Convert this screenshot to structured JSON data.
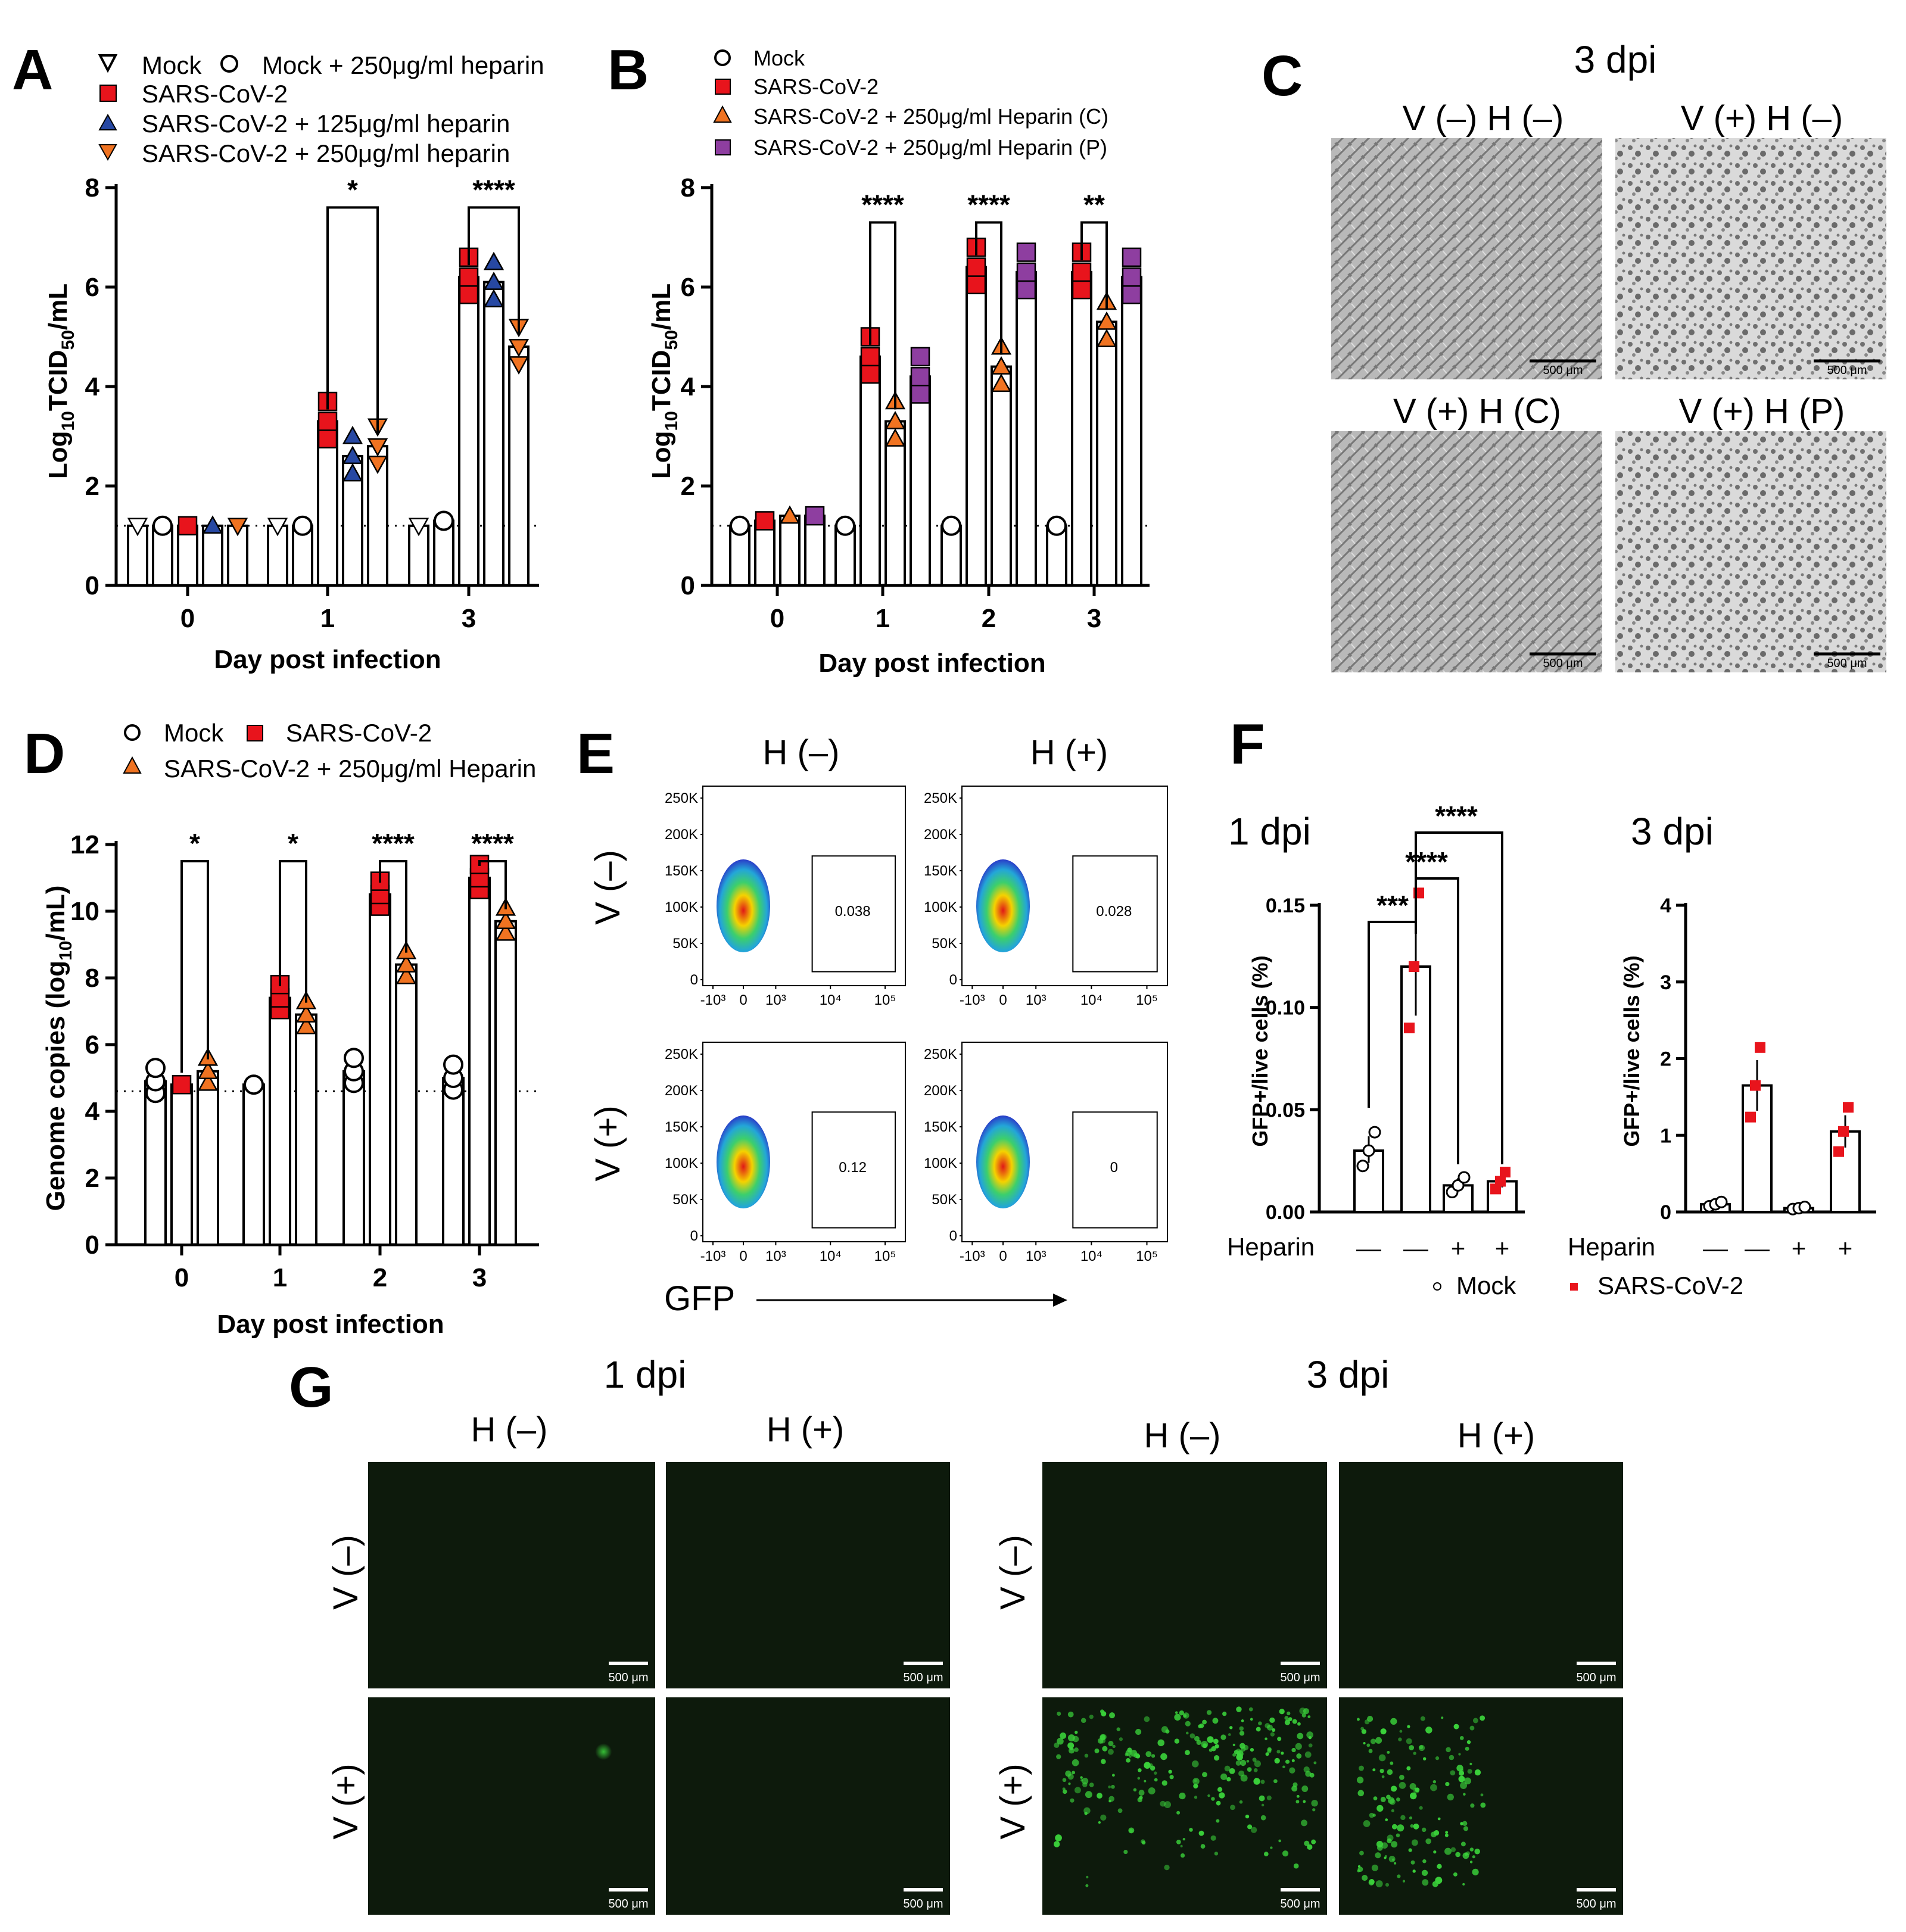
{
  "panels": {
    "A": "A",
    "B": "B",
    "C": "C",
    "D": "D",
    "E": "E",
    "F": "F",
    "G": "G"
  },
  "colors": {
    "mock": "#ffffff",
    "sars": "#e8141c",
    "hep125": "#2748a3",
    "hep250": "#f07321",
    "hepP": "#8e3ea0",
    "micro_bg": "#e6e6e6",
    "fluor_bg": "#0d1a0c",
    "gfp": "#3ad13a"
  },
  "legendA": [
    "Mock",
    "Mock + 250μg/ml heparin",
    "SARS-CoV-2",
    "SARS-CoV-2 + 125μg/ml heparin",
    "SARS-CoV-2 + 250μg/ml heparin"
  ],
  "legendB": [
    "Mock",
    "SARS-CoV-2",
    "SARS-CoV-2 + 250μg/ml Heparin (C)",
    "SARS-CoV-2 + 250μg/ml Heparin (P)"
  ],
  "legendD": [
    "Mock",
    "SARS-CoV-2",
    "SARS-CoV-2 + 250μg/ml Heparin"
  ],
  "panelC": {
    "title": "3 dpi",
    "labels": [
      "V (–) H (–)",
      "V (+) H (–)",
      "V (+) H (C)",
      "V (+) H (P)"
    ],
    "scale": "500 μm"
  },
  "panelE": {
    "cols": [
      "H (–)",
      "H (+)"
    ],
    "rows": [
      "V (–)",
      "V (+)"
    ],
    "gates": [
      "0.038",
      "0.028",
      "0.12",
      "0"
    ],
    "xaxis": "GFP",
    "yticks": [
      "250K",
      "200K",
      "150K",
      "100K",
      "50K",
      "0"
    ],
    "xticks": [
      "-10³",
      "0",
      "10³",
      "10⁴",
      "10⁵"
    ]
  },
  "panelF": {
    "t1": "1 dpi",
    "t2": "3 dpi",
    "ylabel": "GFP+/live cells (%)",
    "heparin_label": "Heparin",
    "heparin": [
      "—",
      "—",
      "+",
      "+"
    ],
    "legend": [
      "Mock",
      "SARS-CoV-2"
    ]
  },
  "panelG": {
    "t1": "1 dpi",
    "t2": "3 dpi",
    "cols": [
      "H (–)",
      "H (+)"
    ],
    "rows": [
      "V (–)",
      "V (+)"
    ],
    "scale": "500 μm"
  },
  "chart_data": [
    {
      "panel": "A",
      "type": "bar",
      "xlabel": "Day post infection",
      "ylabel": "Log10TCID50/mL",
      "ylim": [
        0,
        8
      ],
      "yticks": [
        0,
        2,
        4,
        6,
        8
      ],
      "categories": [
        "0",
        "1",
        "3"
      ],
      "limit_of_detection": 1.2,
      "series": [
        {
          "name": "Mock",
          "values": [
            1.2,
            1.2,
            1.2
          ]
        },
        {
          "name": "Mock + 250μg/ml heparin",
          "values": [
            1.2,
            1.2,
            1.3
          ]
        },
        {
          "name": "SARS-CoV-2",
          "values": [
            1.2,
            3.3,
            6.2
          ]
        },
        {
          "name": "SARS-CoV-2 + 125μg/ml heparin",
          "values": [
            1.2,
            2.6,
            6.1
          ]
        },
        {
          "name": "SARS-CoV-2 + 250μg/ml heparin",
          "values": [
            1.2,
            2.8,
            4.8
          ]
        }
      ],
      "significance": [
        {
          "day": "1",
          "label": "*"
        },
        {
          "day": "3",
          "label": "****"
        }
      ]
    },
    {
      "panel": "B",
      "type": "bar",
      "xlabel": "Day post infection",
      "ylabel": "Log10TCID50/mL",
      "ylim": [
        0,
        8
      ],
      "yticks": [
        0,
        2,
        4,
        6,
        8
      ],
      "categories": [
        "0",
        "1",
        "2",
        "3"
      ],
      "limit_of_detection": 1.2,
      "series": [
        {
          "name": "Mock",
          "values": [
            1.2,
            1.2,
            1.2,
            1.2
          ]
        },
        {
          "name": "SARS-CoV-2",
          "values": [
            1.3,
            4.6,
            6.4,
            6.3
          ]
        },
        {
          "name": "SARS-CoV-2 + 250μg/ml Heparin (C)",
          "values": [
            1.4,
            3.3,
            4.4,
            5.3
          ]
        },
        {
          "name": "SARS-CoV-2 + 250μg/ml Heparin (P)",
          "values": [
            1.4,
            4.2,
            6.3,
            6.2
          ]
        }
      ],
      "significance": [
        {
          "day": "1",
          "label": "****"
        },
        {
          "day": "2",
          "label": "****"
        },
        {
          "day": "3",
          "label": "**"
        }
      ]
    },
    {
      "panel": "D",
      "type": "bar",
      "xlabel": "Day post infection",
      "ylabel": "Genome copies (log10/mL)",
      "ylim": [
        0,
        12
      ],
      "yticks": [
        0,
        2,
        4,
        6,
        8,
        10,
        12
      ],
      "categories": [
        "0",
        "1",
        "2",
        "3"
      ],
      "limit_of_detection": 4.6,
      "series": [
        {
          "name": "Mock",
          "values": [
            4.9,
            4.8,
            5.2,
            5.0
          ]
        },
        {
          "name": "SARS-CoV-2",
          "values": [
            4.8,
            7.4,
            10.5,
            11.0
          ]
        },
        {
          "name": "SARS-CoV-2 + 250μg/ml Heparin",
          "values": [
            5.2,
            6.9,
            8.4,
            9.7
          ]
        }
      ],
      "significance": [
        {
          "day": "0",
          "label": "*"
        },
        {
          "day": "1",
          "label": "*"
        },
        {
          "day": "2",
          "label": "****"
        },
        {
          "day": "3",
          "label": "****"
        }
      ]
    },
    {
      "panel": "F-1dpi",
      "type": "bar",
      "ylabel": "GFP+/live cells (%)",
      "ylim": [
        0,
        0.15
      ],
      "yticks": [
        "0.00",
        "0.05",
        "0.10",
        "0.15"
      ],
      "categories": [
        "Mock —",
        "SARS-CoV-2 —",
        "Mock +",
        "SARS-CoV-2 +"
      ],
      "values": [
        0.03,
        0.12,
        0.013,
        0.015
      ],
      "significance": [
        {
          "label": "***"
        },
        {
          "label": "****"
        },
        {
          "label": "****"
        }
      ]
    },
    {
      "panel": "F-3dpi",
      "type": "bar",
      "ylabel": "GFP+/live cells (%)",
      "ylim": [
        0,
        4
      ],
      "yticks": [
        "0",
        "1",
        "2",
        "3",
        "4"
      ],
      "categories": [
        "Mock —",
        "SARS-CoV-2 —",
        "Mock +",
        "SARS-CoV-2 +"
      ],
      "values": [
        0.1,
        1.65,
        0.05,
        1.05
      ]
    }
  ]
}
